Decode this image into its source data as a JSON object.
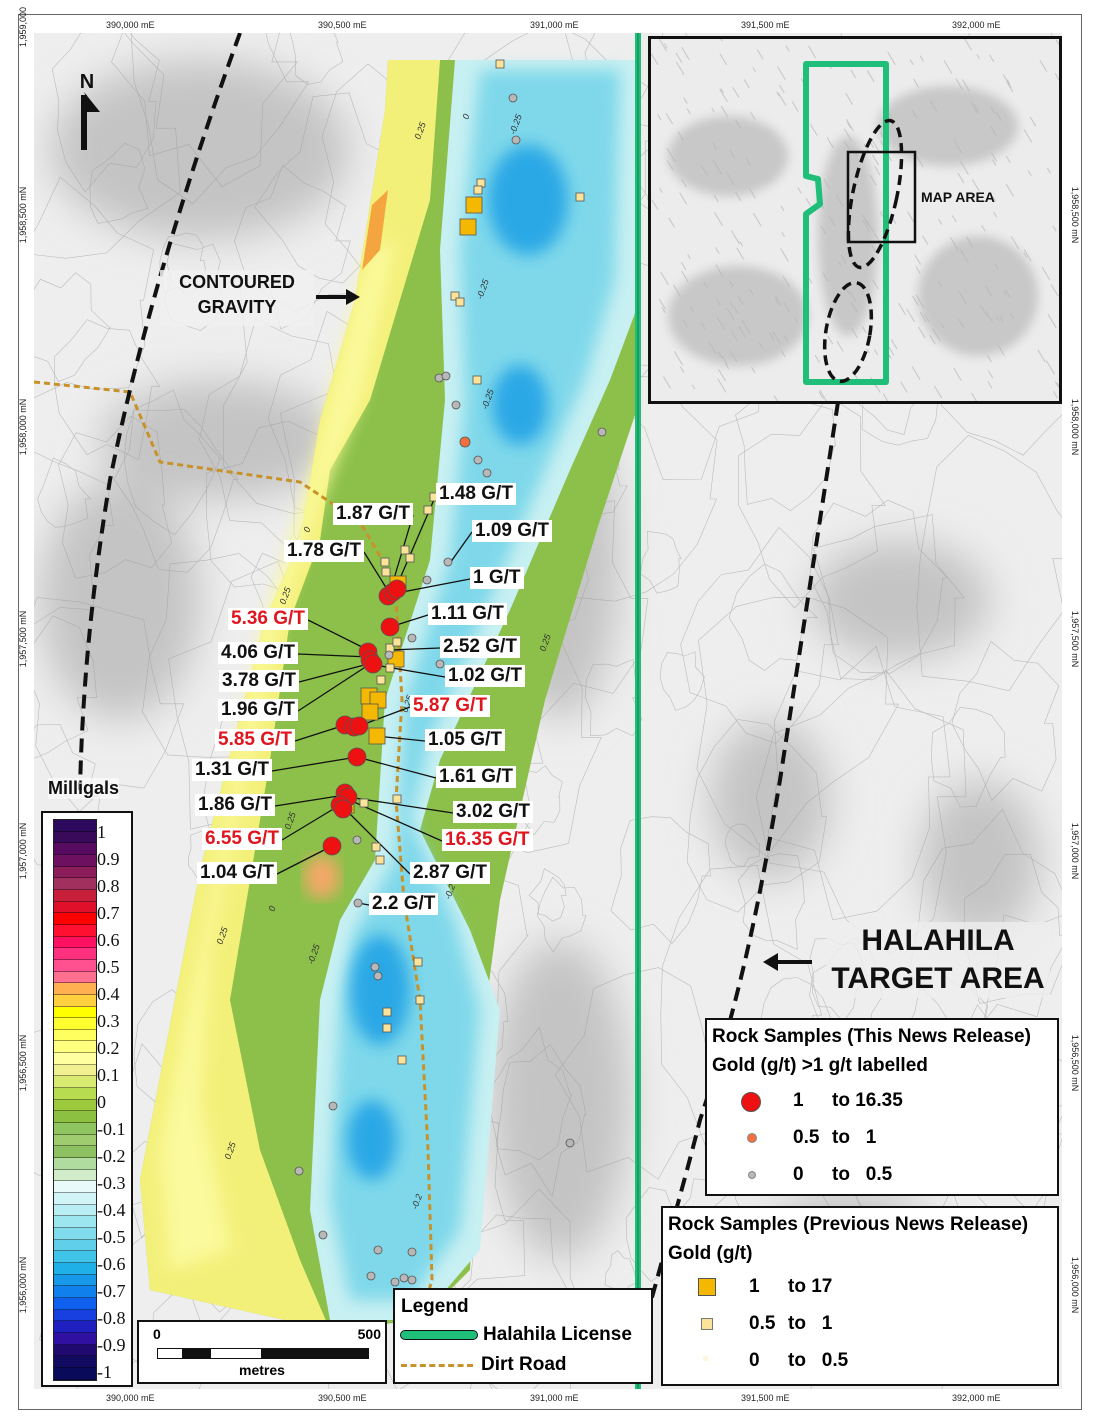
{
  "axes": {
    "top": [
      "390,000 mE",
      "390,500 mE",
      "391,000 mE",
      "391,500 mE",
      "392,000 mE"
    ],
    "bottom": [
      "390,000 mE",
      "390,500 mE",
      "391,000 mE",
      "391,500 mE",
      "392,000 mE"
    ],
    "left": [
      "1,959,000",
      "1,958,500 mN",
      "1,958,000 mN",
      "1,957,500 mN",
      "1,957,000 mN",
      "1,956,500 mN",
      "1,956,000 mN"
    ],
    "right": [
      "1,958,500 mN",
      "1,958,000 mN",
      "1,957,500 mN",
      "1,957,000 mN",
      "1,956,500 mN",
      "1,956,000 mN"
    ]
  },
  "north_arrow": "N",
  "annotations": {
    "contoured_gravity": [
      "CONTOURED",
      "GRAVITY"
    ],
    "target_area": [
      "HALAHILA",
      "TARGET AREA"
    ],
    "inset_map_area": "MAP AREA"
  },
  "contour_labels": [
    "0.25",
    "0",
    "-0.25",
    "-0.25",
    "-0.25",
    "0",
    "0.25",
    "0.25",
    "0.25",
    "0",
    "0.25",
    "-0.25",
    "0.25",
    "-0.2",
    "0.25",
    "-0.2"
  ],
  "sample_labels": [
    {
      "text": "1.48 G/T",
      "highlight": false
    },
    {
      "text": "1.87 G/T",
      "highlight": false
    },
    {
      "text": "1.09 G/T",
      "highlight": false
    },
    {
      "text": "1.78 G/T",
      "highlight": false
    },
    {
      "text": "1 G/T",
      "highlight": false
    },
    {
      "text": "5.36 G/T",
      "highlight": true
    },
    {
      "text": "1.11 G/T",
      "highlight": false
    },
    {
      "text": "4.06 G/T",
      "highlight": false
    },
    {
      "text": "2.52 G/T",
      "highlight": false
    },
    {
      "text": "3.78 G/T",
      "highlight": false
    },
    {
      "text": "1.02 G/T",
      "highlight": false
    },
    {
      "text": "1.96 G/T",
      "highlight": false
    },
    {
      "text": "5.87 G/T",
      "highlight": true
    },
    {
      "text": "5.85 G/T",
      "highlight": true
    },
    {
      "text": "1.05 G/T",
      "highlight": false
    },
    {
      "text": "1.31 G/T",
      "highlight": false
    },
    {
      "text": "1.61 G/T",
      "highlight": false
    },
    {
      "text": "1.86 G/T",
      "highlight": false
    },
    {
      "text": "3.02 G/T",
      "highlight": false
    },
    {
      "text": "6.55 G/T",
      "highlight": true
    },
    {
      "text": "16.35 G/T",
      "highlight": true
    },
    {
      "text": "1.04 G/T",
      "highlight": false
    },
    {
      "text": "2.87 G/T",
      "highlight": false
    },
    {
      "text": "2.2 G/T",
      "highlight": false
    }
  ],
  "colorbar": {
    "title": "Milligals",
    "ticks": [
      "1",
      "0.9",
      "0.8",
      "0.7",
      "0.6",
      "0.5",
      "0.4",
      "0.3",
      "0.2",
      "0.1",
      "0",
      "-0.1",
      "-0.2",
      "-0.3",
      "-0.4",
      "-0.5",
      "-0.6",
      "-0.7",
      "-0.8",
      "-0.9",
      "-1"
    ],
    "colors": [
      "#2d0a5e",
      "#3a0a5a",
      "#560a60",
      "#6e1060",
      "#8a1d5a",
      "#a2305e",
      "#c8203a",
      "#e0102a",
      "#ff0000",
      "#ff1030",
      "#ff1060",
      "#ff3080",
      "#ff5090",
      "#ff7090",
      "#ffb050",
      "#ffd040",
      "#ffff00",
      "#ffff30",
      "#ffff60",
      "#ffff80",
      "#ffffa0",
      "#f0f090",
      "#d8ea70",
      "#b8dc50",
      "#9cca3c",
      "#8cc040",
      "#90c460",
      "#a0cc70",
      "#8cc060",
      "#b0dca0",
      "#d0ecc8",
      "#e8fafa",
      "#d0f4f8",
      "#b8eef4",
      "#9ce6f0",
      "#80dcec",
      "#60d0ea",
      "#40c4ea",
      "#20b0e8",
      "#1898e8",
      "#1080ec",
      "#1060f0",
      "#1840e0",
      "#2020c0",
      "#3010a0",
      "#200a70",
      "#100a60",
      "#0a0a5a"
    ]
  },
  "scale_bar": {
    "start": "0",
    "end": "500",
    "unit": "metres"
  },
  "legend": {
    "title": "Legend",
    "items": [
      {
        "label": "Halahila License",
        "color": "#1fbf7a"
      },
      {
        "label": "Dirt Road",
        "color": "#c8922a"
      }
    ]
  },
  "legend_this_release": {
    "title": "Rock Samples (This News Release)",
    "subtitle": "Gold (g/t) >1 g/t labelled",
    "rows": [
      {
        "from": "1",
        "to": "to 16.35",
        "color": "#ee1111"
      },
      {
        "from": "0.5",
        "to": "to   1",
        "color": "#f07040"
      },
      {
        "from": "0",
        "to": "to   0.5",
        "color": "#b8b8b8"
      }
    ]
  },
  "legend_previous_release": {
    "title": "Rock Samples (Previous News Release)",
    "subtitle": "Gold (g/t)",
    "rows": [
      {
        "from": "1",
        "to": "to 17",
        "color": "#f5b800"
      },
      {
        "from": "0.5",
        "to": "to   1",
        "color": "#fbe39a"
      },
      {
        "from": "0",
        "to": "to   0.5",
        "color": "#fbf6dc"
      }
    ]
  },
  "colors": {
    "license": "#1fbf7a",
    "road": "#c8922a",
    "high_label": "#e0161e"
  }
}
